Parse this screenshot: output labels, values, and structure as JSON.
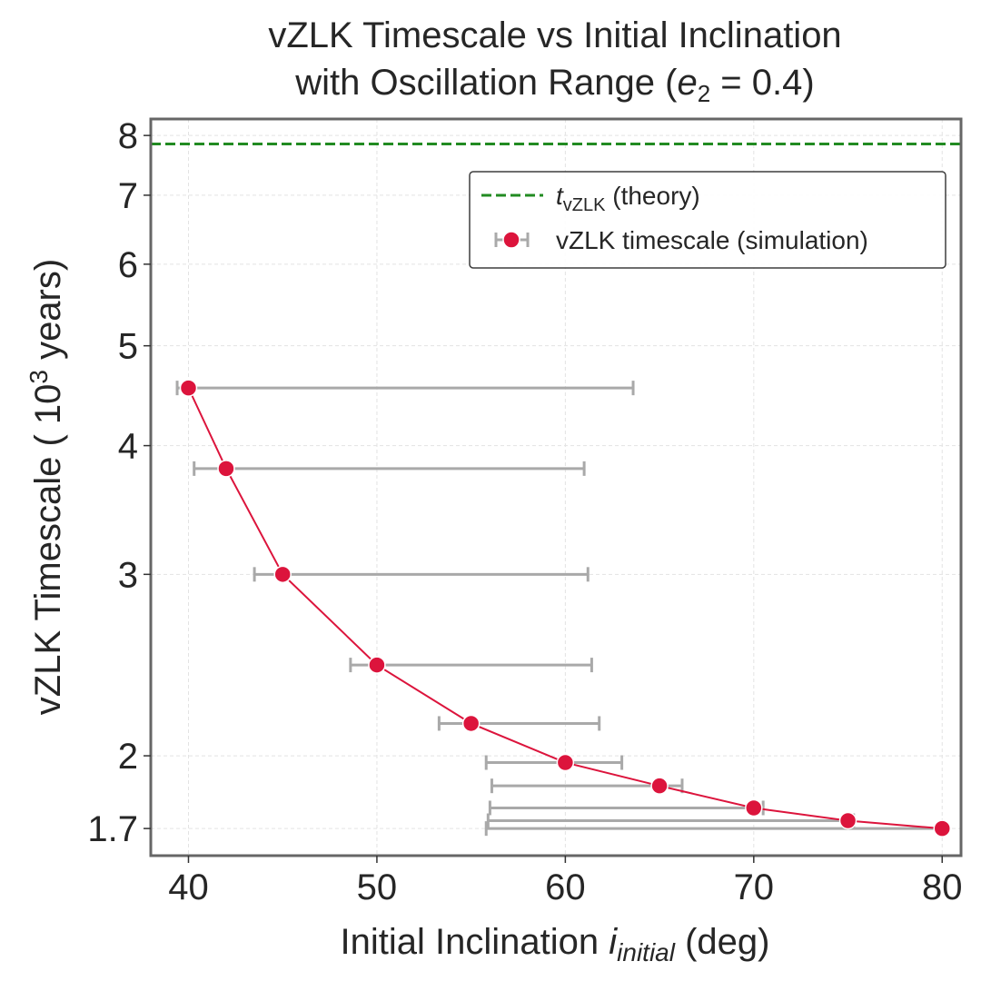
{
  "chart_data": {
    "type": "line",
    "title_line1": "vZLK Timescale vs Initial Inclination",
    "title_line2_prefix": "with Oscillation Range (",
    "title_line2_var": "e",
    "title_line2_sub": "2",
    "title_line2_suffix": " = 0.4)",
    "xlabel_prefix": "Initial Inclination ",
    "xlabel_var": "i",
    "xlabel_sub": "initial",
    "xlabel_suffix": " (deg)",
    "ylabel_prefix": "vZLK Timescale ( 10",
    "ylabel_sup": "3",
    "ylabel_suffix": " years)",
    "xlim": [
      38,
      81
    ],
    "ylim": [
      1.6,
      8.3
    ],
    "yscale": "log",
    "xticks": [
      40,
      50,
      60,
      70,
      80
    ],
    "yticks": [
      1.7,
      2,
      3,
      4,
      5,
      6,
      7,
      8
    ],
    "ytick_labels": [
      "1.7",
      "2",
      "3",
      "4",
      "5",
      "6",
      "7",
      "8"
    ],
    "grid": true,
    "legend_position": "top-right",
    "series": [
      {
        "name": "vZLK timescale (simulation)",
        "color": "#dc143c",
        "x": [
          40,
          42,
          45,
          50,
          55,
          60,
          65,
          70,
          75,
          80
        ],
        "y": [
          4.55,
          3.8,
          3.0,
          2.45,
          2.15,
          1.97,
          1.87,
          1.78,
          1.73,
          1.7
        ],
        "xerr_low": [
          39.4,
          40.3,
          43.5,
          48.6,
          53.3,
          55.8,
          56.1,
          56.0,
          55.9,
          55.8
        ],
        "xerr_high": [
          63.6,
          61.0,
          61.2,
          61.4,
          61.8,
          63.0,
          66.2,
          70.5,
          75.3,
          80.0
        ],
        "errorbar_color": "#a9a9a9"
      }
    ],
    "reference_line": {
      "name_var": "t",
      "name_sub": "vZLK",
      "name_suffix": " (theory)",
      "value": 7.85,
      "color": "#228b22",
      "style": "dashed"
    }
  }
}
